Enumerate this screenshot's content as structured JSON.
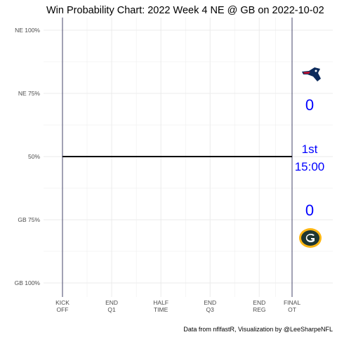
{
  "chart_data": {
    "type": "line",
    "title": "Win Probability Chart: 2022 Week 4 NE @ GB on 2022-10-02",
    "caption": "Data from nflfastR, Visualization by @LeeSharpeNFL",
    "y_ticks": [
      {
        "value": 1.0,
        "label": "NE 100%"
      },
      {
        "value": 0.75,
        "label": "NE 75%"
      },
      {
        "value": 0.5,
        "label": "50%"
      },
      {
        "value": 0.25,
        "label": "GB 75%"
      },
      {
        "value": 0.0,
        "label": "GB 100%"
      }
    ],
    "x_ticks": [
      {
        "value": 0,
        "line1": "KICK",
        "line2": "OFF"
      },
      {
        "value": 15,
        "line1": "END",
        "line2": "Q1"
      },
      {
        "value": 30,
        "line1": "HALF",
        "line2": "TIME"
      },
      {
        "value": 45,
        "line1": "END",
        "line2": "Q3"
      },
      {
        "value": 60,
        "line1": "END",
        "line2": "REG"
      },
      {
        "value": 70,
        "line1": "FINAL",
        "line2": "OT"
      }
    ],
    "xlim": [
      0,
      70
    ],
    "ylim": [
      0,
      1
    ],
    "grid": true,
    "series": [
      {
        "x": [
          0,
          70
        ],
        "y": [
          0.5,
          0.5
        ],
        "color": "#000000"
      }
    ],
    "vertical_markers": [
      {
        "x": 0,
        "color": "#1a1a4a"
      },
      {
        "x": 70,
        "color": "#1a1a4a"
      }
    ]
  },
  "scoreboard": {
    "away_team_icon": "patriots-logo-icon",
    "home_team_icon": "packers-logo-icon",
    "away_score": "0",
    "home_score": "0",
    "period": "1st",
    "clock": "15:00",
    "text_color": "#0000ff"
  },
  "colors": {
    "patriots_navy": "#0b2a5b",
    "patriots_red": "#c8102e",
    "packers_green": "#203731",
    "packers_gold": "#ffb612",
    "grid": "#ebebeb"
  }
}
